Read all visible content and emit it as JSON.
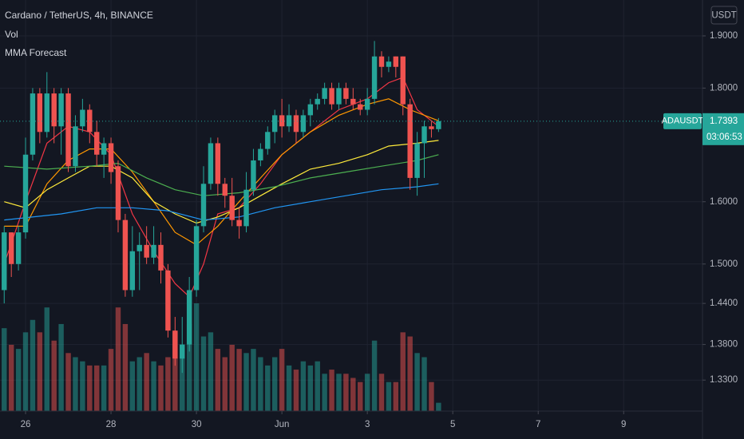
{
  "chart_data": {
    "type": "candlestick",
    "title": "Cardano / TetherUS, 4h, BINANCE",
    "indicators": [
      "Vol",
      "MMA Forecast"
    ],
    "currency": "USDT",
    "symbol": "ADAUSDT",
    "last_price": 1.7393,
    "countdown": "03:06:53",
    "log_scale": true,
    "grid": true,
    "up_color": "#26a69a",
    "down_color": "#ef5350",
    "xlim": [
      -3.59,
      95.07
    ],
    "xticks": [
      {
        "value": 0,
        "label": "26"
      },
      {
        "value": 12,
        "label": "28"
      },
      {
        "value": 24,
        "label": "30"
      },
      {
        "value": 36,
        "label": "Jun"
      },
      {
        "value": 48,
        "label": "3"
      },
      {
        "value": 60,
        "label": "5"
      },
      {
        "value": 72,
        "label": "7"
      },
      {
        "value": 84,
        "label": "9"
      }
    ],
    "ylim": [
      1.288,
      1.972
    ],
    "yticks": [
      {
        "value": 1.9,
        "label": "1.9000"
      },
      {
        "value": 1.8,
        "label": "1.8000"
      },
      {
        "value": 1.6,
        "label": "1.6000"
      },
      {
        "value": 1.5,
        "label": "1.5000"
      },
      {
        "value": 1.44,
        "label": "1.4400"
      },
      {
        "value": 1.38,
        "label": "1.3800"
      },
      {
        "value": 1.33,
        "label": "1.3300"
      }
    ],
    "candles": {
      "x": [
        -3,
        -2,
        -1,
        0,
        1,
        2,
        3,
        4,
        5,
        6,
        7,
        8,
        9,
        10,
        11,
        12,
        13,
        14,
        15,
        16,
        17,
        18,
        19,
        20,
        21,
        22,
        23,
        24,
        25,
        26,
        27,
        28,
        29,
        30,
        31,
        32,
        33,
        34,
        35,
        36,
        37,
        38,
        39,
        40,
        41,
        42,
        43,
        44,
        45,
        46,
        47,
        48,
        49,
        50,
        51,
        52,
        53,
        54,
        55,
        56,
        57,
        58
      ],
      "open": [
        1.46,
        1.55,
        1.5,
        1.55,
        1.68,
        1.79,
        1.72,
        1.79,
        1.73,
        1.79,
        1.66,
        1.73,
        1.76,
        1.72,
        1.68,
        1.7,
        1.66,
        1.57,
        1.46,
        1.52,
        1.53,
        1.51,
        1.53,
        1.49,
        1.4,
        1.36,
        1.38,
        1.46,
        1.56,
        1.63,
        1.7,
        1.63,
        1.61,
        1.57,
        1.56,
        1.62,
        1.67,
        1.69,
        1.72,
        1.75,
        1.73,
        1.75,
        1.72,
        1.75,
        1.77,
        1.78,
        1.8,
        1.77,
        1.8,
        1.78,
        1.77,
        1.76,
        1.78,
        1.86,
        1.84,
        1.86,
        1.86,
        1.77,
        1.64,
        1.7,
        1.73,
        1.725
      ],
      "high": [
        1.56,
        1.55,
        1.56,
        1.71,
        1.8,
        1.8,
        1.83,
        1.8,
        1.8,
        1.8,
        1.75,
        1.78,
        1.77,
        1.74,
        1.71,
        1.71,
        1.67,
        1.58,
        1.56,
        1.55,
        1.56,
        1.56,
        1.55,
        1.5,
        1.42,
        1.42,
        1.48,
        1.57,
        1.66,
        1.71,
        1.71,
        1.64,
        1.64,
        1.59,
        1.65,
        1.69,
        1.7,
        1.73,
        1.76,
        1.78,
        1.77,
        1.76,
        1.76,
        1.78,
        1.79,
        1.81,
        1.81,
        1.81,
        1.81,
        1.8,
        1.78,
        1.8,
        1.89,
        1.87,
        1.86,
        1.86,
        1.86,
        1.78,
        1.72,
        1.74,
        1.74,
        1.745
      ],
      "low": [
        1.44,
        1.48,
        1.49,
        1.54,
        1.67,
        1.7,
        1.71,
        1.7,
        1.68,
        1.65,
        1.65,
        1.72,
        1.7,
        1.66,
        1.64,
        1.63,
        1.55,
        1.45,
        1.45,
        1.46,
        1.5,
        1.5,
        1.47,
        1.39,
        1.35,
        1.34,
        1.37,
        1.45,
        1.55,
        1.62,
        1.61,
        1.59,
        1.56,
        1.54,
        1.55,
        1.61,
        1.66,
        1.68,
        1.7,
        1.71,
        1.72,
        1.7,
        1.71,
        1.73,
        1.76,
        1.77,
        1.76,
        1.76,
        1.77,
        1.76,
        1.75,
        1.75,
        1.77,
        1.82,
        1.83,
        1.82,
        1.75,
        1.62,
        1.61,
        1.64,
        1.71,
        1.72
      ],
      "close": [
        1.55,
        1.5,
        1.55,
        1.68,
        1.79,
        1.72,
        1.79,
        1.73,
        1.79,
        1.66,
        1.73,
        1.76,
        1.72,
        1.68,
        1.7,
        1.65,
        1.57,
        1.46,
        1.52,
        1.53,
        1.51,
        1.53,
        1.49,
        1.4,
        1.36,
        1.38,
        1.46,
        1.56,
        1.63,
        1.7,
        1.63,
        1.61,
        1.57,
        1.56,
        1.62,
        1.67,
        1.69,
        1.72,
        1.75,
        1.73,
        1.75,
        1.72,
        1.75,
        1.77,
        1.78,
        1.8,
        1.77,
        1.8,
        1.78,
        1.77,
        1.76,
        1.78,
        1.86,
        1.84,
        1.85,
        1.84,
        1.77,
        1.64,
        1.7,
        1.73,
        1.725,
        1.7393
      ],
      "volume": [
        100,
        80,
        75,
        95,
        110,
        95,
        125,
        85,
        105,
        70,
        65,
        60,
        55,
        55,
        55,
        75,
        125,
        105,
        60,
        65,
        70,
        60,
        55,
        65,
        95,
        80,
        105,
        130,
        90,
        95,
        75,
        65,
        80,
        75,
        70,
        75,
        65,
        55,
        65,
        75,
        55,
        50,
        60,
        55,
        60,
        45,
        50,
        45,
        45,
        40,
        35,
        45,
        85,
        45,
        35,
        35,
        95,
        90,
        70,
        65,
        35,
        10
      ]
    },
    "series": [
      {
        "color": "#f23645",
        "x": [
          -3,
          0,
          3,
          6,
          9,
          12,
          15,
          18,
          21,
          23,
          25,
          27,
          30,
          33,
          36,
          40,
          44,
          48,
          51,
          53,
          55,
          58
        ],
        "values": [
          1.5,
          1.6,
          1.7,
          1.73,
          1.72,
          1.68,
          1.58,
          1.52,
          1.47,
          1.45,
          1.5,
          1.58,
          1.59,
          1.63,
          1.68,
          1.72,
          1.76,
          1.78,
          1.81,
          1.82,
          1.76,
          1.73
        ]
      },
      {
        "color": "#ff9800",
        "x": [
          -3,
          0,
          3,
          6,
          9,
          12,
          15,
          18,
          21,
          24,
          27,
          30,
          33,
          36,
          40,
          44,
          48,
          51,
          54,
          58
        ],
        "values": [
          1.56,
          1.56,
          1.63,
          1.67,
          1.69,
          1.69,
          1.65,
          1.6,
          1.55,
          1.53,
          1.56,
          1.6,
          1.64,
          1.68,
          1.72,
          1.75,
          1.77,
          1.78,
          1.76,
          1.74
        ]
      },
      {
        "color": "#ffeb3b",
        "x": [
          -3,
          0,
          3,
          6,
          9,
          12,
          15,
          18,
          21,
          24,
          27,
          30,
          33,
          36,
          40,
          44,
          48,
          51,
          55,
          58
        ],
        "values": [
          1.6,
          1.59,
          1.62,
          1.64,
          1.66,
          1.66,
          1.64,
          1.6,
          1.58,
          1.565,
          1.575,
          1.59,
          1.61,
          1.63,
          1.655,
          1.665,
          1.68,
          1.695,
          1.7,
          1.705
        ]
      },
      {
        "color": "#4caf50",
        "x": [
          -3,
          3,
          9,
          13,
          17,
          21,
          25,
          30,
          35,
          40,
          45,
          50,
          55,
          58
        ],
        "values": [
          1.66,
          1.655,
          1.66,
          1.665,
          1.64,
          1.62,
          1.61,
          1.615,
          1.625,
          1.64,
          1.65,
          1.66,
          1.67,
          1.68
        ]
      },
      {
        "color": "#2196f3",
        "x": [
          -3,
          5,
          10,
          15,
          20,
          25,
          30,
          35,
          40,
          45,
          50,
          55,
          58
        ],
        "values": [
          1.57,
          1.58,
          1.59,
          1.59,
          1.585,
          1.57,
          1.575,
          1.59,
          1.6,
          1.61,
          1.62,
          1.625,
          1.63
        ]
      }
    ]
  }
}
